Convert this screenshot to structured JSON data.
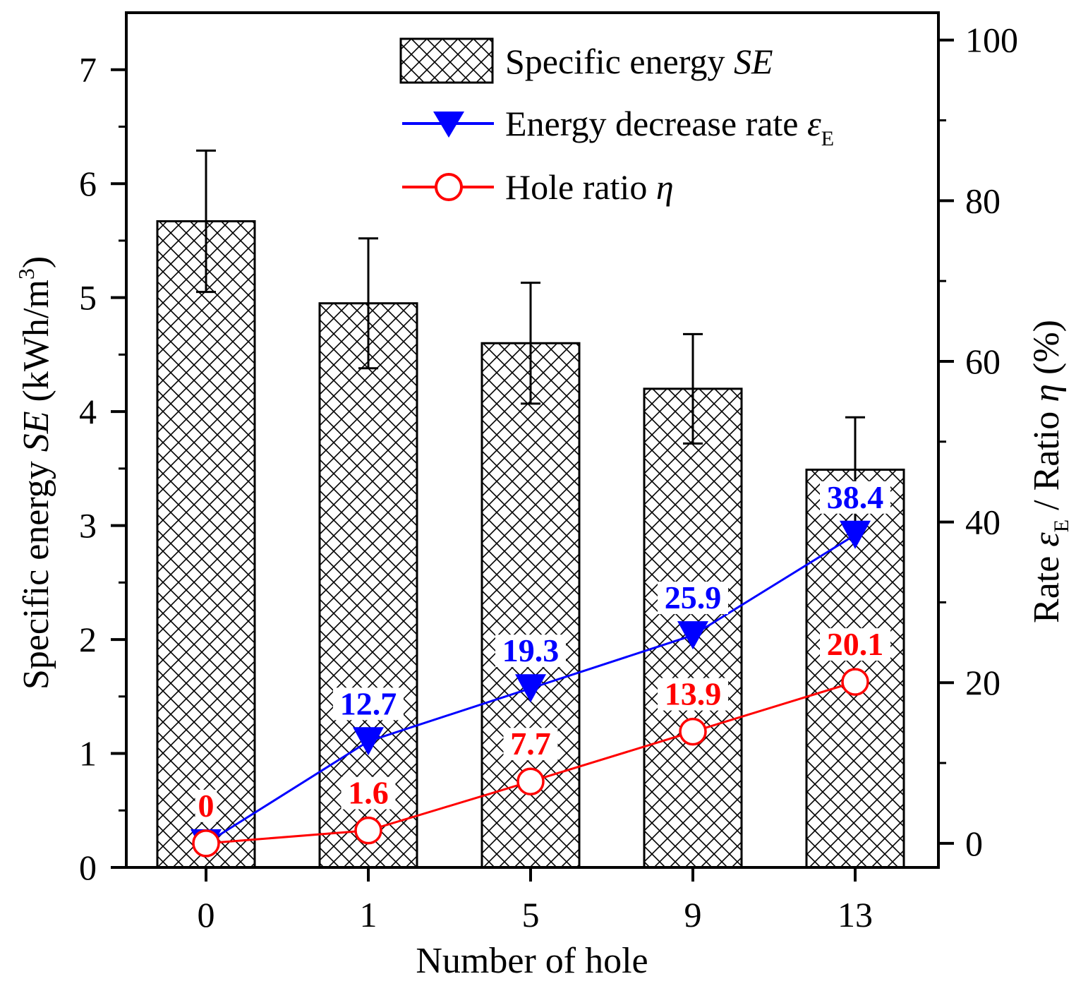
{
  "chart_data": {
    "type": "bar+line",
    "categories": [
      "0",
      "1",
      "5",
      "9",
      "13"
    ],
    "bars": {
      "name": "Specific energy SE",
      "values": [
        5.67,
        4.95,
        4.6,
        4.2,
        3.49
      ],
      "errors": [
        0.62,
        0.57,
        0.53,
        0.48,
        0.46
      ]
    },
    "series": [
      {
        "name": "Energy decrease rate εE",
        "axis": "right",
        "color": "#0000ff",
        "marker": "triangle-down",
        "values": [
          0,
          12.7,
          19.3,
          25.9,
          38.4
        ],
        "labels": [
          "",
          "12.7",
          "19.3",
          "25.9",
          "38.4"
        ]
      },
      {
        "name": "Hole ratio η",
        "axis": "right",
        "color": "#ff0000",
        "marker": "open-circle",
        "values": [
          0,
          1.6,
          7.7,
          13.9,
          20.1
        ],
        "labels": [
          "0",
          "1.6",
          "7.7",
          "13.9",
          "20.1"
        ]
      }
    ],
    "left_axis": {
      "label_prefix": "Specific energy ",
      "label_italic": "SE",
      "label_suffix": " (kWh/m",
      "label_sup": "3",
      "label_end": ")",
      "ylim": [
        0,
        7.5
      ],
      "ticks": [
        "0",
        "1",
        "2",
        "3",
        "4",
        "5",
        "6",
        "7"
      ]
    },
    "right_axis": {
      "label_prefix": "Rate ",
      "label_eps": "ε",
      "label_sub": "E",
      "label_mid": " / Ratio ",
      "label_eta": "η",
      "label_end": " (%)",
      "ylim": [
        -3,
        103.4
      ],
      "ticks": [
        "0",
        "20",
        "40",
        "60",
        "80",
        "100"
      ]
    },
    "xlabel": "Number of hole",
    "legend": {
      "bar_label": "Specific energy ",
      "bar_label_italic": "SE",
      "rate_label": "Energy decrease rate ",
      "rate_eps": "ε",
      "rate_sub": "E",
      "hole_label": "Hole ratio ",
      "hole_eta": "η"
    }
  }
}
